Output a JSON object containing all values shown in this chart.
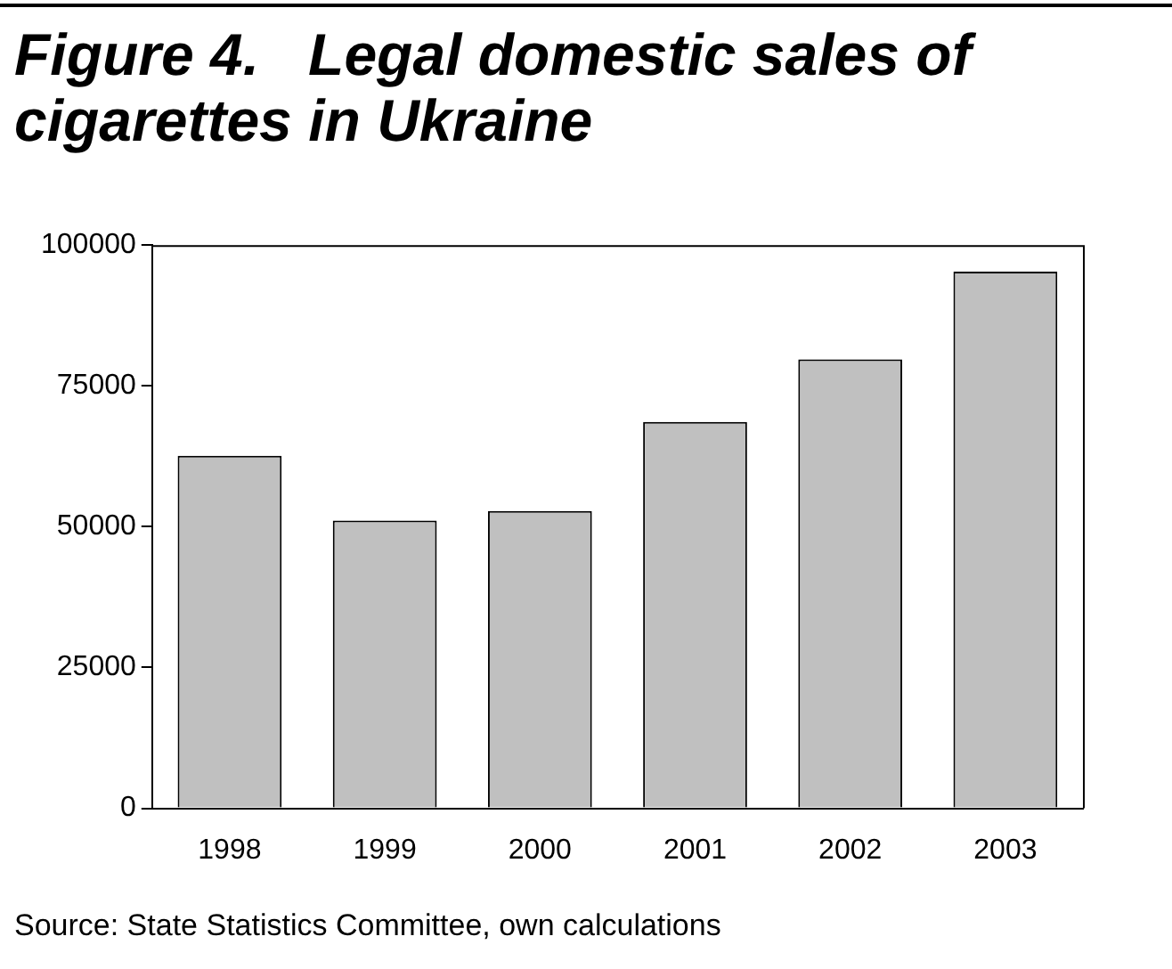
{
  "chart_data": {
    "type": "bar",
    "title": "Figure 4.   Legal domestic sales of cigarettes in Ukraine",
    "categories": [
      "1998",
      "1999",
      "2000",
      "2001",
      "2002",
      "2003"
    ],
    "values": [
      62600,
      51100,
      52800,
      68600,
      79700,
      95300
    ],
    "color": "#c0c0c0",
    "ylim": [
      0,
      100000
    ],
    "yticks": [
      0,
      25000,
      50000,
      75000,
      100000
    ],
    "grid": false,
    "legend": false,
    "annotations": [
      "Source: State Statistics Committee, own calculations"
    ]
  }
}
